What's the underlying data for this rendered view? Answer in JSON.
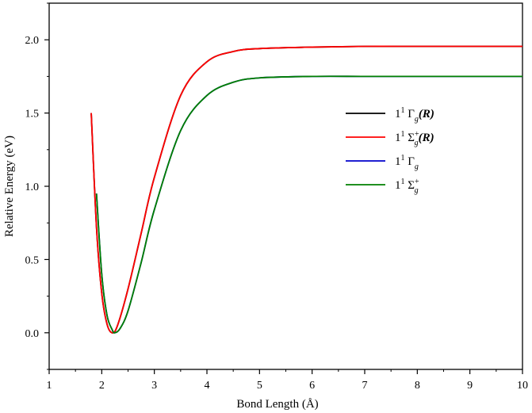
{
  "chart_data": {
    "type": "line",
    "xlabel": "Bond Length (Å)",
    "ylabel": "Relative Energy (eV)",
    "xlim": [
      1,
      10
    ],
    "ylim": [
      -0.25,
      2.25
    ],
    "xticks": [
      1,
      2,
      3,
      4,
      5,
      6,
      7,
      8,
      9,
      10
    ],
    "xtick_labels": [
      "1",
      "2",
      "3",
      "4",
      "5",
      "6",
      "7",
      "8",
      "9",
      "10"
    ],
    "yticks": [
      0.0,
      0.5,
      1.0,
      1.5,
      2.0
    ],
    "ytick_labels": [
      "0.0",
      "0.5",
      "1.0",
      "1.5",
      "2.0"
    ],
    "grid": false,
    "legend_position": "right",
    "series": [
      {
        "label": {
          "main": "1",
          "sup": "1",
          "greek": "Γ",
          "sub": "g",
          "supsym": "",
          "suffix": "(R)"
        },
        "color": "#000000",
        "x": [
          1.8,
          1.9,
          2.0,
          2.1,
          2.2,
          2.3,
          2.5,
          2.75,
          3.0,
          3.5,
          4.0,
          4.5,
          5.0,
          6.0,
          7.0,
          8.0,
          9.0,
          10.0
        ],
        "y": [
          1.5,
          0.72,
          0.27,
          0.06,
          0.0,
          0.05,
          0.3,
          0.68,
          1.06,
          1.62,
          1.85,
          1.92,
          1.94,
          1.95,
          1.955,
          1.955,
          1.955,
          1.955
        ]
      },
      {
        "label": {
          "main": "1",
          "sup": "1",
          "greek": "Σ",
          "sub": "g",
          "supsym": "+",
          "suffix": "(R)"
        },
        "color": "#ff0000",
        "x": [
          1.8,
          1.9,
          2.0,
          2.1,
          2.2,
          2.3,
          2.5,
          2.75,
          3.0,
          3.5,
          4.0,
          4.5,
          5.0,
          6.0,
          7.0,
          8.0,
          9.0,
          10.0
        ],
        "y": [
          1.5,
          0.72,
          0.27,
          0.06,
          0.0,
          0.05,
          0.3,
          0.68,
          1.06,
          1.62,
          1.85,
          1.92,
          1.94,
          1.95,
          1.955,
          1.955,
          1.955,
          1.955
        ]
      },
      {
        "label": {
          "main": "1",
          "sup": "1",
          "greek": "Γ",
          "sub": "g",
          "supsym": "",
          "suffix": ""
        },
        "color": "#0000cc",
        "x": [
          1.9,
          2.0,
          2.1,
          2.2,
          2.25,
          2.35,
          2.5,
          2.75,
          3.0,
          3.5,
          4.0,
          4.5,
          5.0,
          6.0,
          7.0,
          8.0,
          9.0,
          10.0
        ],
        "y": [
          0.95,
          0.4,
          0.12,
          0.02,
          0.0,
          0.03,
          0.15,
          0.48,
          0.84,
          1.38,
          1.62,
          1.71,
          1.74,
          1.75,
          1.75,
          1.75,
          1.75,
          1.75
        ]
      },
      {
        "label": {
          "main": "1",
          "sup": "1",
          "greek": "Σ",
          "sub": "g",
          "supsym": "+",
          "suffix": ""
        },
        "color": "#008000",
        "x": [
          1.9,
          2.0,
          2.1,
          2.2,
          2.25,
          2.35,
          2.5,
          2.75,
          3.0,
          3.5,
          4.0,
          4.5,
          5.0,
          6.0,
          7.0,
          8.0,
          9.0,
          10.0
        ],
        "y": [
          0.95,
          0.4,
          0.12,
          0.02,
          0.0,
          0.03,
          0.15,
          0.48,
          0.84,
          1.38,
          1.62,
          1.71,
          1.74,
          1.75,
          1.75,
          1.75,
          1.75,
          1.75
        ]
      }
    ]
  }
}
